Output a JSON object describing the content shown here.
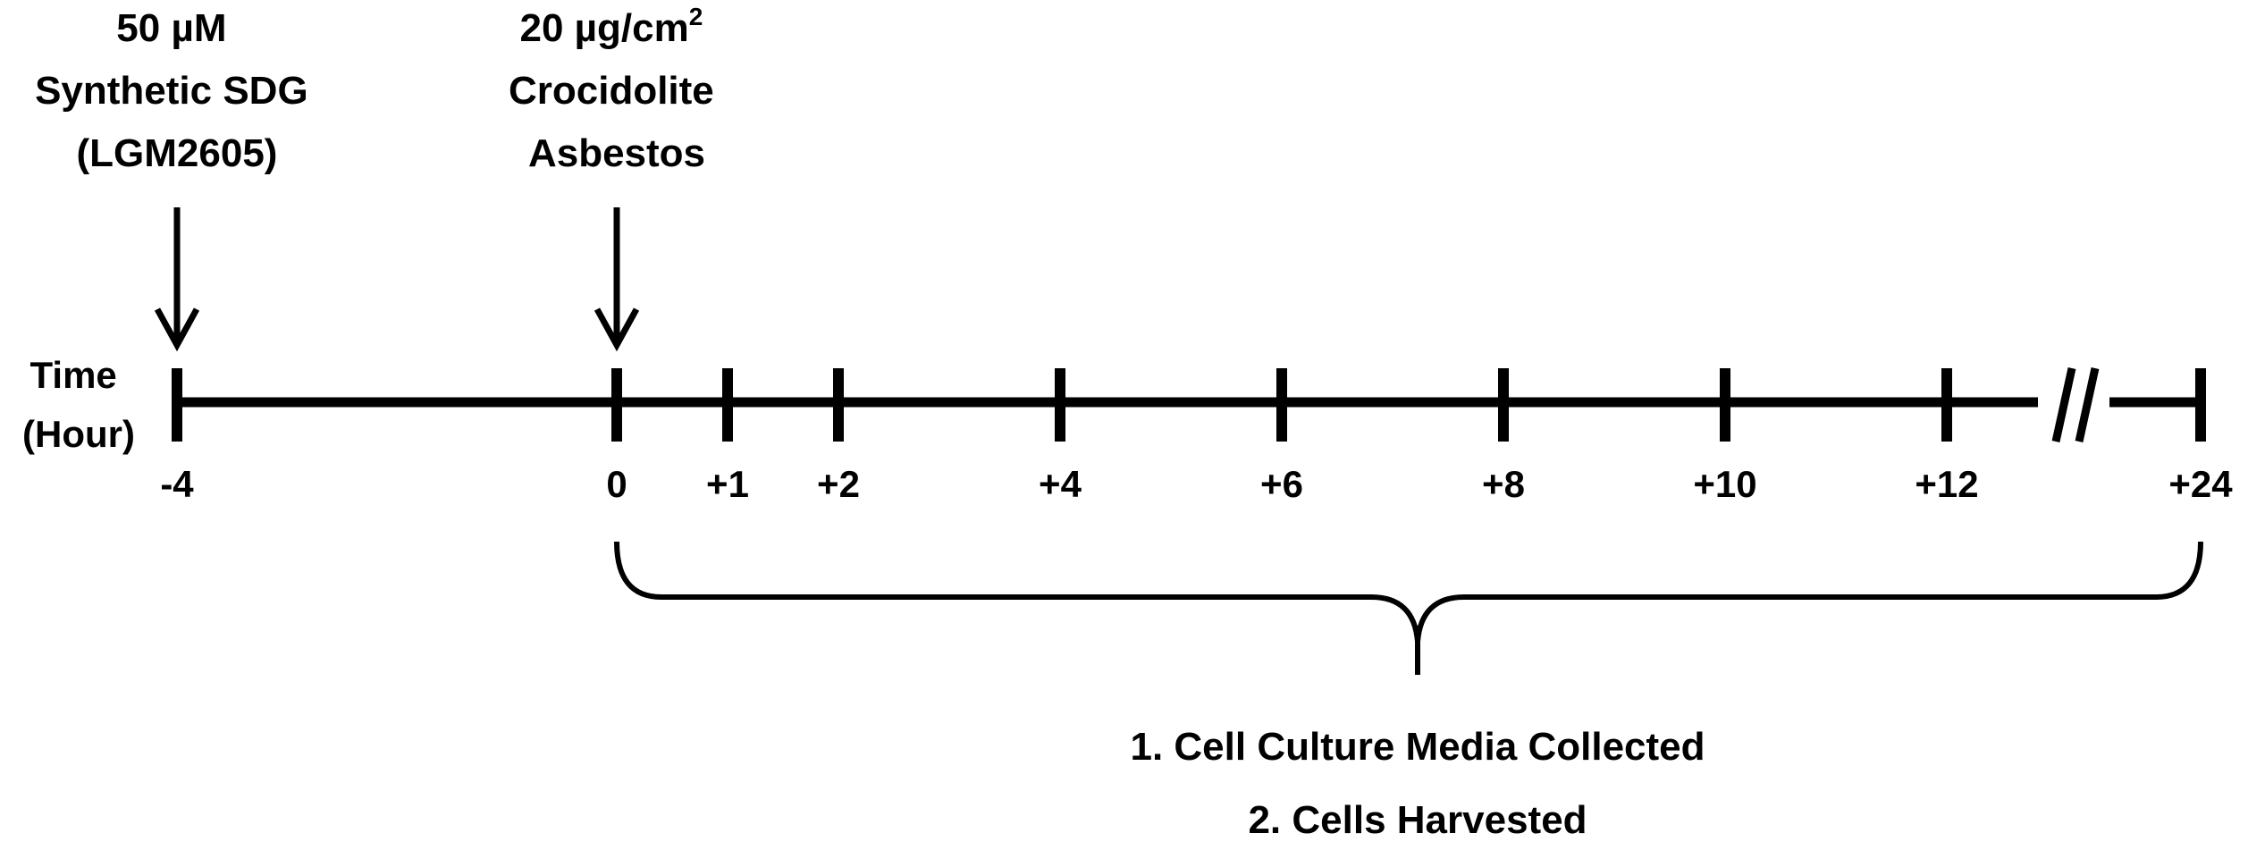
{
  "timeline": {
    "axis_label_line1": "Time",
    "axis_label_line2": "(Hour)",
    "ticks": [
      {
        "label": "-4",
        "hour": -4
      },
      {
        "label": "0",
        "hour": 0
      },
      {
        "label": "+1",
        "hour": 1
      },
      {
        "label": "+2",
        "hour": 2
      },
      {
        "label": "+4",
        "hour": 4
      },
      {
        "label": "+6",
        "hour": 6
      },
      {
        "label": "+8",
        "hour": 8
      },
      {
        "label": "+10",
        "hour": 10
      },
      {
        "label": "+12",
        "hour": 12
      },
      {
        "label": "+24",
        "hour": 24
      }
    ],
    "axis_break_between": [
      "+12",
      "+24"
    ]
  },
  "treatments": [
    {
      "at": "-4",
      "lines": [
        "50 µM",
        "Synthetic SDG",
        "(LGM2605)"
      ]
    },
    {
      "at": "0",
      "lines": [
        "20 µg/cm",
        "Crocidolite",
        "Asbestos"
      ],
      "superscript": "2"
    }
  ],
  "collection": {
    "span": [
      "0",
      "+24"
    ],
    "items": [
      "1. Cell Culture Media Collected",
      "2. Cells Harvested"
    ]
  }
}
